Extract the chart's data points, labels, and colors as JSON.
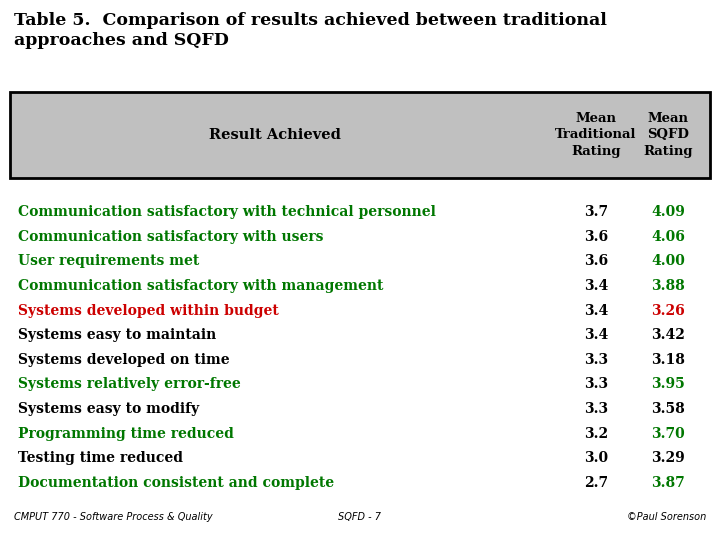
{
  "title_line1": "Table 5.  Comparison of results achieved between traditional",
  "title_line2": "approaches and SQFD",
  "rows": [
    {
      "text": "Communication satisfactory with technical personnel",
      "trad": "3.7",
      "sqfd": "4.09",
      "row_color": "green",
      "sqfd_color": "green"
    },
    {
      "text": "Communication satisfactory with users",
      "trad": "3.6",
      "sqfd": "4.06",
      "row_color": "green",
      "sqfd_color": "green"
    },
    {
      "text": "User requirements met",
      "trad": "3.6",
      "sqfd": "4.00",
      "row_color": "green",
      "sqfd_color": "green"
    },
    {
      "text": "Communication satisfactory with management",
      "trad": "3.4",
      "sqfd": "3.88",
      "row_color": "green",
      "sqfd_color": "green"
    },
    {
      "text": "Systems developed within budget",
      "trad": "3.4",
      "sqfd": "3.26",
      "row_color": "red",
      "sqfd_color": "red"
    },
    {
      "text": "Systems easy to maintain",
      "trad": "3.4",
      "sqfd": "3.42",
      "row_color": "black",
      "sqfd_color": "black"
    },
    {
      "text": "Systems developed on time",
      "trad": "3.3",
      "sqfd": "3.18",
      "row_color": "black",
      "sqfd_color": "black"
    },
    {
      "text": "Systems relatively error-free",
      "trad": "3.3",
      "sqfd": "3.95",
      "row_color": "green",
      "sqfd_color": "green"
    },
    {
      "text": "Systems easy to modify",
      "trad": "3.3",
      "sqfd": "3.58",
      "row_color": "black",
      "sqfd_color": "black"
    },
    {
      "text": "Programming time reduced",
      "trad": "3.2",
      "sqfd": "3.70",
      "row_color": "green",
      "sqfd_color": "green"
    },
    {
      "text": "Testing time reduced",
      "trad": "3.0",
      "sqfd": "3.29",
      "row_color": "black",
      "sqfd_color": "black"
    },
    {
      "text": "Documentation consistent and complete",
      "trad": "2.7",
      "sqfd": "3.87",
      "row_color": "green",
      "sqfd_color": "green"
    }
  ],
  "footer_left": "CMPUT 770 - Software Process & Quality",
  "footer_center": "SQFD - 7",
  "footer_right": "©Paul Sorenson",
  "bg_color": "#ffffff",
  "header_bg": "#c0c0c0",
  "green": "#007700",
  "red": "#cc0000",
  "black": "#000000",
  "title_fontsize": 12.5,
  "header_fontsize": 9.5,
  "row_fontsize": 10,
  "footer_fontsize": 7
}
